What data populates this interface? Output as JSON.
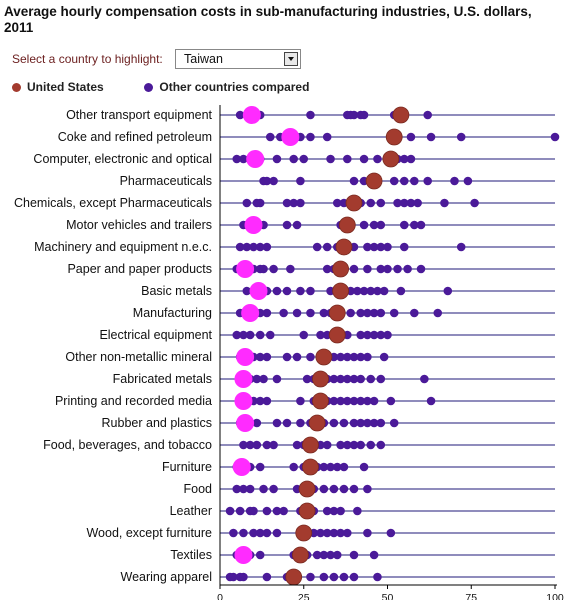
{
  "chart_data": {
    "type": "scatter",
    "title": "Average hourly compensation costs in sub-manufacturing industries, U.S. dollars, 2011",
    "xlim": [
      0,
      100
    ],
    "xticks": [
      "0",
      "25",
      "50",
      "75",
      "100"
    ],
    "grid": false,
    "legend": [
      {
        "name": "United States",
        "color": "#a33b2e"
      },
      {
        "name": "Other countries compared",
        "color": "#4b1a99"
      }
    ],
    "highlight_color": "#ff2bff",
    "categories": [
      {
        "label": "Other transport equipment",
        "us": 54,
        "highlight": 9.5,
        "others": [
          6,
          8,
          10,
          11,
          12,
          27,
          38,
          39,
          40,
          42,
          43,
          52,
          53,
          54,
          55,
          62
        ]
      },
      {
        "label": "Coke and refined petroleum",
        "us": 52,
        "highlight": 21,
        "others": [
          15,
          18,
          20,
          22,
          24,
          27,
          32,
          51,
          53,
          57,
          63,
          72,
          100
        ]
      },
      {
        "label": "Computer, electronic and optical",
        "us": 51,
        "highlight": 10.5,
        "others": [
          5,
          7,
          9,
          12,
          17,
          22,
          25,
          33,
          38,
          43,
          47,
          51,
          53,
          55,
          57
        ]
      },
      {
        "label": "Pharmaceuticals",
        "us": 46,
        "highlight": null,
        "others": [
          13,
          14,
          16,
          24,
          40,
          43,
          46,
          52,
          55,
          58,
          62,
          70,
          74
        ]
      },
      {
        "label": "Chemicals, except Pharmaceuticals",
        "us": 40,
        "highlight": null,
        "others": [
          8,
          11,
          12,
          20,
          22,
          24,
          35,
          37,
          39,
          42,
          45,
          48,
          53,
          55,
          57,
          59,
          67,
          76
        ]
      },
      {
        "label": "Motor vehicles and trailers",
        "us": 38,
        "highlight": 10,
        "others": [
          7,
          8,
          9,
          10,
          11,
          13,
          20,
          23,
          36,
          38,
          43,
          46,
          48,
          55,
          58,
          60
        ]
      },
      {
        "label": "Machinery and equipment n.e.c.",
        "us": 37,
        "highlight": null,
        "others": [
          6,
          8,
          10,
          12,
          14,
          29,
          32,
          35,
          37,
          40,
          44,
          46,
          48,
          50,
          55,
          72
        ]
      },
      {
        "label": "Paper and paper products",
        "us": 36,
        "highlight": 7.5,
        "others": [
          5,
          10,
          12,
          13,
          16,
          21,
          32,
          34,
          36,
          40,
          44,
          48,
          50,
          53,
          56,
          60
        ]
      },
      {
        "label": "Basic metals",
        "us": 36,
        "highlight": 11.5,
        "others": [
          8,
          10,
          12,
          14,
          17,
          20,
          24,
          27,
          33,
          35,
          37,
          39,
          41,
          43,
          45,
          47,
          49,
          54,
          68
        ]
      },
      {
        "label": "Manufacturing",
        "us": 35,
        "highlight": 9,
        "others": [
          6,
          8,
          10,
          12,
          14,
          19,
          23,
          27,
          31,
          33,
          36,
          39,
          42,
          44,
          46,
          48,
          52,
          58,
          65
        ]
      },
      {
        "label": "Electrical equipment",
        "us": 35,
        "highlight": null,
        "others": [
          5,
          7,
          9,
          12,
          15,
          25,
          30,
          32,
          34,
          36,
          38,
          42,
          44,
          46,
          48,
          50
        ]
      },
      {
        "label": "Other non-metallic mineral",
        "us": 31,
        "highlight": 7.5,
        "others": [
          6,
          10,
          12,
          14,
          20,
          23,
          27,
          30,
          32,
          34,
          36,
          38,
          40,
          42,
          44,
          49
        ]
      },
      {
        "label": "Fabricated metals",
        "us": 30,
        "highlight": 7,
        "others": [
          6,
          9,
          11,
          13,
          17,
          26,
          28,
          32,
          34,
          36,
          38,
          40,
          42,
          45,
          48,
          61
        ]
      },
      {
        "label": "Printing and recorded media",
        "us": 30,
        "highlight": 7,
        "others": [
          6,
          8,
          10,
          12,
          14,
          24,
          28,
          32,
          34,
          36,
          38,
          40,
          42,
          44,
          46,
          51,
          63
        ]
      },
      {
        "label": "Rubber and plastics",
        "us": 29,
        "highlight": 7.5,
        "others": [
          6,
          8,
          11,
          17,
          20,
          24,
          27,
          31,
          34,
          37,
          40,
          42,
          44,
          46,
          48,
          52
        ]
      },
      {
        "label": "Food, beverages, and tobacco",
        "us": 27,
        "highlight": null,
        "others": [
          7,
          9,
          11,
          14,
          16,
          23,
          25,
          27,
          30,
          32,
          36,
          38,
          40,
          42,
          45,
          48
        ]
      },
      {
        "label": "Furniture",
        "us": 27,
        "highlight": 6.5,
        "others": [
          5,
          7,
          9,
          12,
          22,
          25,
          27,
          29,
          31,
          33,
          35,
          37,
          43
        ]
      },
      {
        "label": "Food",
        "us": 26,
        "highlight": null,
        "others": [
          5,
          7,
          9,
          13,
          16,
          23,
          25,
          28,
          31,
          34,
          37,
          40,
          44
        ]
      },
      {
        "label": "Leather",
        "us": 26,
        "highlight": null,
        "others": [
          3,
          6,
          9,
          10,
          14,
          17,
          19,
          24,
          26,
          28,
          32,
          34,
          36,
          41
        ]
      },
      {
        "label": "Wood, except furniture",
        "us": 25,
        "highlight": null,
        "others": [
          4,
          7,
          10,
          12,
          14,
          17,
          24,
          26,
          28,
          30,
          32,
          34,
          36,
          38,
          44,
          51
        ]
      },
      {
        "label": "Textiles",
        "us": 24,
        "highlight": 7,
        "others": [
          5,
          7,
          9,
          12,
          22,
          24,
          26,
          29,
          31,
          33,
          35,
          40,
          46
        ]
      },
      {
        "label": "Wearing apparel",
        "us": 22,
        "highlight": null,
        "others": [
          3,
          4,
          6,
          7,
          14,
          20,
          22,
          27,
          31,
          34,
          37,
          40,
          47
        ]
      }
    ]
  },
  "selector": {
    "label": "Select a country to highlight:",
    "selected": "Taiwan"
  }
}
